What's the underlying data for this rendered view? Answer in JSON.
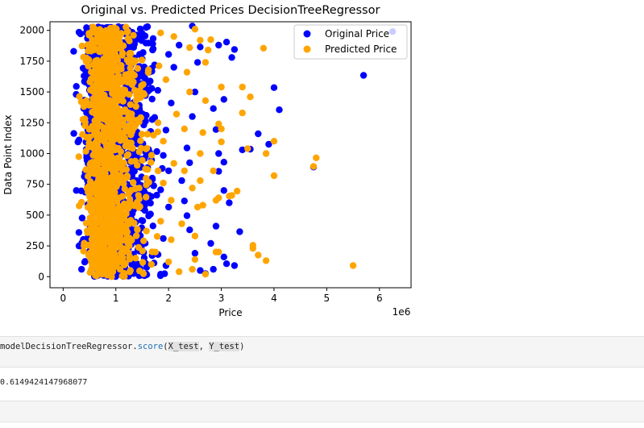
{
  "chart_data": {
    "type": "scatter",
    "title": "Original vs. Predicted Prices  DecisionTreeRegressor",
    "xlabel": "Price",
    "ylabel": "Data Point Index",
    "x_offset_label": "1e6",
    "xlim": [
      -0.25,
      6.6
    ],
    "ylim": [
      -90,
      2070
    ],
    "x_ticks": [
      0,
      1,
      2,
      3,
      4,
      5,
      6
    ],
    "x_tick_labels": [
      "0",
      "1",
      "2",
      "3",
      "4",
      "5",
      "6"
    ],
    "y_ticks": [
      0,
      250,
      500,
      750,
      1000,
      1250,
      1500,
      1750,
      2000
    ],
    "y_tick_labels": [
      "0",
      "250",
      "500",
      "750",
      "1000",
      "1250",
      "1500",
      "1750",
      "2000"
    ],
    "legend_position": "top-right",
    "series": [
      {
        "name": "Original Price",
        "color": "#0000ff",
        "points": [
          [
            6.25,
            1990
          ],
          [
            5.7,
            1635
          ],
          [
            4.1,
            1355
          ],
          [
            4.0,
            1535
          ],
          [
            3.9,
            1075
          ],
          [
            3.7,
            1160
          ],
          [
            3.55,
            1035
          ],
          [
            3.4,
            1030
          ],
          [
            3.05,
            1440
          ],
          [
            3.1,
            1905
          ],
          [
            3.25,
            1845
          ],
          [
            3.2,
            1780
          ],
          [
            2.95,
            1880
          ],
          [
            2.85,
            1365
          ],
          [
            2.9,
            1195
          ],
          [
            2.95,
            1000
          ],
          [
            3.05,
            930
          ],
          [
            2.95,
            855
          ],
          [
            3.35,
            365
          ],
          [
            3.05,
            160
          ],
          [
            3.1,
            105
          ],
          [
            3.25,
            90
          ],
          [
            2.85,
            60
          ],
          [
            2.7,
            25
          ],
          [
            2.8,
            270
          ],
          [
            2.9,
            410
          ],
          [
            3.15,
            600
          ],
          [
            3.05,
            700
          ],
          [
            2.6,
            50
          ],
          [
            2.5,
            190
          ],
          [
            2.4,
            380
          ],
          [
            2.35,
            495
          ],
          [
            2.3,
            615
          ],
          [
            2.25,
            780
          ],
          [
            2.4,
            925
          ],
          [
            2.35,
            1045
          ],
          [
            2.45,
            1300
          ],
          [
            2.5,
            1500
          ],
          [
            2.55,
            1740
          ],
          [
            2.6,
            1865
          ],
          [
            2.2,
            1880
          ],
          [
            2.45,
            2035
          ],
          [
            2.0,
            1805
          ],
          [
            2.1,
            1700
          ],
          [
            2.05,
            1410
          ],
          [
            1.95,
            1190
          ],
          [
            1.9,
            985
          ],
          [
            2.0,
            860
          ],
          [
            1.85,
            705
          ],
          [
            2.0,
            565
          ],
          [
            1.9,
            310
          ],
          [
            1.8,
            180
          ],
          [
            1.95,
            90
          ],
          [
            1.85,
            20
          ],
          [
            4.75,
            890
          ],
          [
            0.2,
            1830
          ],
          [
            0.25,
            1545
          ],
          [
            0.3,
            1110
          ],
          [
            0.25,
            700
          ],
          [
            0.3,
            250
          ],
          [
            0.35,
            60
          ],
          [
            0.3,
            1985
          ],
          [
            1.05,
            2030
          ],
          [
            1.6,
            2030
          ],
          [
            1.7,
            1890
          ]
        ]
      },
      {
        "name": "Predicted Price",
        "color": "#ffa500",
        "points": [
          [
            5.5,
            90
          ],
          [
            4.8,
            965
          ],
          [
            4.75,
            895
          ],
          [
            4.0,
            820
          ],
          [
            4.0,
            1100
          ],
          [
            3.85,
            1000
          ],
          [
            3.8,
            1855
          ],
          [
            3.85,
            130
          ],
          [
            3.7,
            175
          ],
          [
            3.6,
            255
          ],
          [
            3.6,
            230
          ],
          [
            3.55,
            1460
          ],
          [
            3.5,
            1040
          ],
          [
            3.4,
            1540
          ],
          [
            3.4,
            1330
          ],
          [
            3.3,
            695
          ],
          [
            3.2,
            660
          ],
          [
            3.15,
            655
          ],
          [
            3.0,
            1540
          ],
          [
            3.0,
            1200
          ],
          [
            3.0,
            1095
          ],
          [
            2.95,
            1240
          ],
          [
            2.95,
            640
          ],
          [
            2.9,
            620
          ],
          [
            2.95,
            200
          ],
          [
            2.9,
            200
          ],
          [
            2.85,
            860
          ],
          [
            2.8,
            1925
          ],
          [
            2.75,
            1840
          ],
          [
            2.7,
            1740
          ],
          [
            2.7,
            1430
          ],
          [
            2.65,
            1170
          ],
          [
            2.6,
            1000
          ],
          [
            2.6,
            780
          ],
          [
            2.55,
            565
          ],
          [
            2.5,
            330
          ],
          [
            2.5,
            140
          ],
          [
            2.45,
            60
          ],
          [
            2.4,
            1860
          ],
          [
            2.35,
            1660
          ],
          [
            2.3,
            1200
          ],
          [
            2.3,
            860
          ],
          [
            2.25,
            430
          ],
          [
            2.2,
            40
          ],
          [
            2.5,
            2010
          ],
          [
            2.6,
            1920
          ],
          [
            2.1,
            1950
          ],
          [
            2.15,
            1320
          ],
          [
            2.1,
            920
          ],
          [
            2.05,
            620
          ],
          [
            2.05,
            300
          ],
          [
            2.0,
            120
          ],
          [
            1.95,
            1600
          ],
          [
            1.9,
            1100
          ],
          [
            1.9,
            760
          ],
          [
            1.85,
            450
          ],
          [
            1.85,
            1980
          ],
          [
            1.8,
            1250
          ],
          [
            1.8,
            860
          ],
          [
            1.75,
            200
          ],
          [
            2.65,
            580
          ],
          [
            2.7,
            20
          ],
          [
            2.4,
            1500
          ],
          [
            2.45,
            720
          ]
        ]
      }
    ]
  },
  "code_cell": {
    "prefix": "modelDecisionTreeRegressor.",
    "method": "score",
    "open": "(",
    "arg1": "X_test",
    "sep": ", ",
    "arg2": "Y_test",
    "close": ")"
  },
  "output_text": "0.6149424147968077"
}
